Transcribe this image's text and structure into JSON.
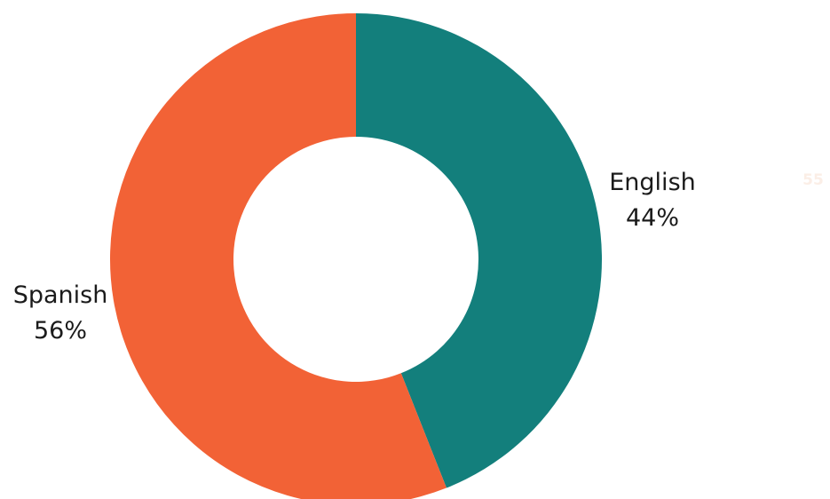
{
  "page_number": "55",
  "chart_data": {
    "type": "pie",
    "variant": "donut",
    "title": "",
    "legend": "none",
    "slices": [
      {
        "label": "English",
        "value": 44,
        "value_label": "44%",
        "color": "#137f7c"
      },
      {
        "label": "Spanish",
        "value": 56,
        "value_label": "56%",
        "color": "#f26236"
      }
    ]
  }
}
